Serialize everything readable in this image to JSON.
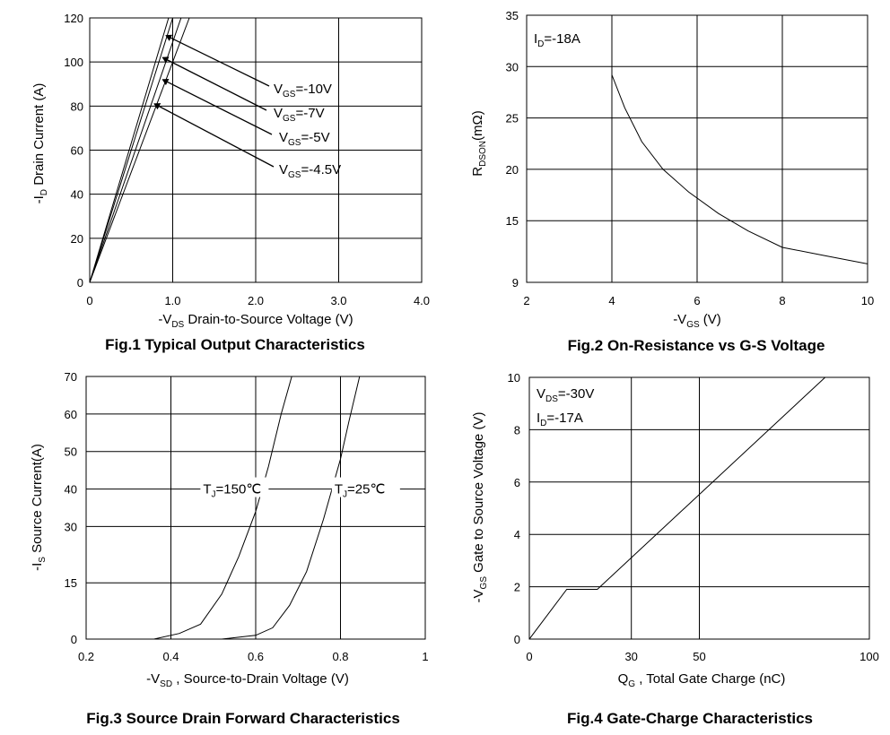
{
  "chart_data": [
    {
      "type": "line",
      "id": "fig1",
      "caption": "Fig.1 Typical Output Characteristics",
      "xlabel": {
        "prefix": "-V",
        "sub": "DS",
        "text": "  Drain-to-Source Voltage (V)"
      },
      "ylabel": {
        "prefix": "-I",
        "sub": "D",
        "text": " Drain Current (A)"
      },
      "xlim": [
        0,
        4
      ],
      "ylim": [
        0,
        120
      ],
      "xticks": [
        0,
        1,
        2,
        3,
        4
      ],
      "xtick_labels": [
        "0",
        "1.0",
        "2.0",
        "3.0",
        "4.0"
      ],
      "yticks": [
        0,
        20,
        40,
        60,
        80,
        100,
        120
      ],
      "ytick_labels": [
        "0",
        "20",
        "40",
        "60",
        "80",
        "100",
        "120"
      ],
      "series": [
        {
          "name": "V_GS=-10V",
          "label_prefix": "V",
          "label_sub": "GS",
          "label_rest": "=-10V",
          "x": [
            0,
            0.95
          ],
          "y": [
            0,
            120
          ],
          "arrow_at": [
            0.92,
            112
          ]
        },
        {
          "name": "V_GS=-7V",
          "label_prefix": "V",
          "label_sub": "GS",
          "label_rest": "=-7V",
          "x": [
            0,
            1.0
          ],
          "y": [
            0,
            120
          ],
          "arrow_at": [
            0.88,
            102
          ]
        },
        {
          "name": "V_GS=-5V",
          "label_prefix": "V",
          "label_sub": "GS",
          "label_rest": "=-5V",
          "x": [
            0,
            1.1
          ],
          "y": [
            0,
            120
          ],
          "arrow_at": [
            0.88,
            92
          ]
        },
        {
          "name": "V_GS=-4.5V",
          "label_prefix": "V",
          "label_sub": "GS",
          "label_rest": "=-4.5V",
          "x": [
            0,
            1.2
          ],
          "y": [
            0,
            120
          ],
          "arrow_at": [
            0.78,
            81
          ]
        }
      ]
    },
    {
      "type": "line",
      "id": "fig2",
      "caption": "Fig.2 On-Resistance vs G-S Voltage",
      "xlabel": {
        "prefix": "-V",
        "sub": "GS",
        "text": " (V)"
      },
      "ylabel": {
        "prefix": "R",
        "sub": "DSON",
        "text": "(mΩ)"
      },
      "xlim": [
        2,
        10
      ],
      "ylim": [
        9,
        35
      ],
      "xticks": [
        2,
        4,
        6,
        8,
        10
      ],
      "xtick_labels": [
        "2",
        "4",
        "6",
        "8",
        "10"
      ],
      "yticks": [
        9,
        15,
        20,
        25,
        30,
        35
      ],
      "ytick_labels": [
        "9",
        "15",
        "20",
        "25",
        "30",
        "35"
      ],
      "annotations": [
        {
          "prefix": "I",
          "sub": "D",
          "rest": "=-18A"
        }
      ],
      "series": [
        {
          "name": "R_DSON",
          "x": [
            4,
            4.3,
            4.7,
            5.2,
            5.8,
            6.5,
            7.2,
            8,
            9,
            10
          ],
          "y": [
            29.2,
            26,
            22.7,
            20,
            17.8,
            15.7,
            14,
            12.4,
            11.6,
            10.8
          ]
        }
      ]
    },
    {
      "type": "line",
      "id": "fig3",
      "caption": "Fig.3 Source Drain Forward Characteristics",
      "xlabel": {
        "prefix": "-V",
        "sub": "SD",
        "text": " , Source-to-Drain Voltage (V)"
      },
      "ylabel": {
        "prefix": "-I",
        "sub": "S",
        "text": " Source Current(A)"
      },
      "xlim": [
        0.2,
        1
      ],
      "ylim": [
        0,
        70
      ],
      "xticks": [
        0.2,
        0.4,
        0.6,
        0.8,
        1
      ],
      "xtick_labels": [
        "0.2",
        "0.4",
        "0.6",
        "0.8",
        "1"
      ],
      "yticks": [
        0,
        15,
        30,
        40,
        50,
        60,
        70
      ],
      "ytick_labels": [
        "0",
        "15",
        "30",
        "40",
        "50",
        "60",
        "70"
      ],
      "series": [
        {
          "name": "T_J=150℃",
          "label_prefix": "T",
          "label_sub": "J",
          "label_rest": "=150℃",
          "label_at": [
            0.55,
            40
          ],
          "x": [
            0.2,
            0.36,
            0.42,
            0.47,
            0.52,
            0.56,
            0.6,
            0.63,
            0.66,
            0.685
          ],
          "y": [
            0,
            0,
            1.5,
            4,
            12,
            22,
            34,
            46,
            60,
            70
          ]
        },
        {
          "name": "T_J=25℃",
          "label_prefix": "T",
          "label_sub": "J",
          "label_rest": "=25℃",
          "label_at": [
            0.86,
            40
          ],
          "x": [
            0.2,
            0.52,
            0.6,
            0.64,
            0.68,
            0.72,
            0.76,
            0.8,
            0.82,
            0.845
          ],
          "y": [
            0,
            0,
            1,
            3,
            9,
            18,
            32,
            48,
            58,
            70
          ]
        }
      ]
    },
    {
      "type": "line",
      "id": "fig4",
      "caption": "Fig.4 Gate-Charge Characteristics",
      "xlabel": {
        "prefix": "Q",
        "sub": "G",
        "text": " , Total Gate Charge (nC)"
      },
      "ylabel": {
        "prefix": "-V",
        "sub": "GS",
        "text": "  Gate to Source Voltage (V)"
      },
      "xlim": [
        0,
        100
      ],
      "ylim": [
        0,
        10
      ],
      "xticks": [
        0,
        30,
        50,
        100
      ],
      "xtick_labels": [
        "0",
        "30",
        "50",
        "100"
      ],
      "yticks": [
        0,
        2,
        4,
        6,
        8,
        10
      ],
      "ytick_labels": [
        "0",
        "2",
        "4",
        "6",
        "8",
        "10"
      ],
      "annotations": [
        {
          "prefix": "V",
          "sub": "DS",
          "rest": "=-30V"
        },
        {
          "prefix": "I",
          "sub": "D",
          "rest": "=-17A"
        }
      ],
      "series": [
        {
          "name": "V_GS",
          "x": [
            0,
            11,
            20,
            87
          ],
          "y": [
            0,
            1.9,
            1.9,
            10
          ]
        }
      ]
    }
  ]
}
